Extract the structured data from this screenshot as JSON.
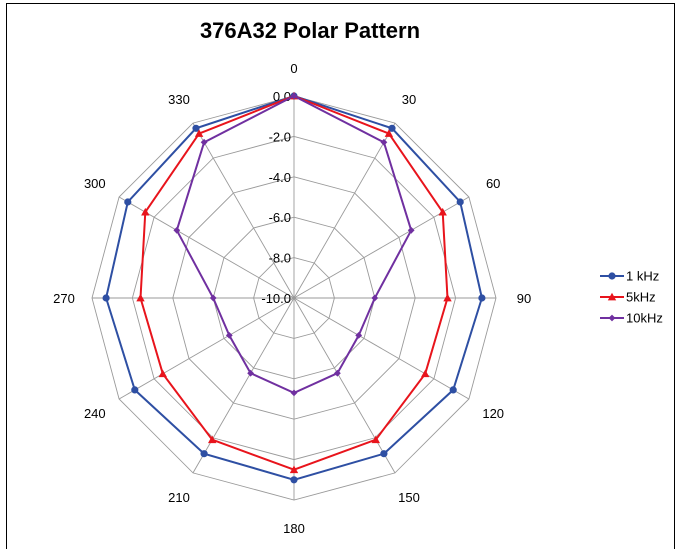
{
  "chart_data": {
    "type": "radar",
    "title": "376A32 Polar Pattern",
    "angles": [
      0,
      30,
      60,
      90,
      120,
      150,
      180,
      210,
      240,
      270,
      300,
      330
    ],
    "angle_labels": [
      "0",
      "30",
      "60",
      "90",
      "120",
      "150",
      "180",
      "210",
      "240",
      "270",
      "300",
      "330"
    ],
    "radial_ticks": [
      0.0,
      -2.0,
      -4.0,
      -6.0,
      -8.0,
      -10.0
    ],
    "radial_tick_labels": [
      "0.0",
      "-2.0",
      "-4.0",
      "-6.0",
      "-8.0",
      "-10.0"
    ],
    "r_range": [
      -10,
      0
    ],
    "grid": true,
    "legend_position": "right",
    "series": [
      {
        "name": "1 kHz",
        "color": "#2E4FA3",
        "marker": "circle",
        "values": [
          0.0,
          -0.3,
          -0.5,
          -0.7,
          -0.9,
          -1.1,
          -1.0,
          -1.1,
          -0.9,
          -0.7,
          -0.5,
          -0.3
        ]
      },
      {
        "name": "5kHz",
        "color": "#E8141C",
        "marker": "triangle",
        "values": [
          0.0,
          -0.6,
          -1.5,
          -2.4,
          -2.5,
          -1.9,
          -1.5,
          -1.9,
          -2.5,
          -2.4,
          -1.5,
          -0.6
        ]
      },
      {
        "name": "10kHz",
        "color": "#7030A0",
        "marker": "diamond",
        "values": [
          0.0,
          -1.1,
          -3.3,
          -6.0,
          -6.3,
          -5.7,
          -5.3,
          -5.7,
          -6.3,
          -6.0,
          -3.3,
          -1.1
        ]
      }
    ]
  }
}
